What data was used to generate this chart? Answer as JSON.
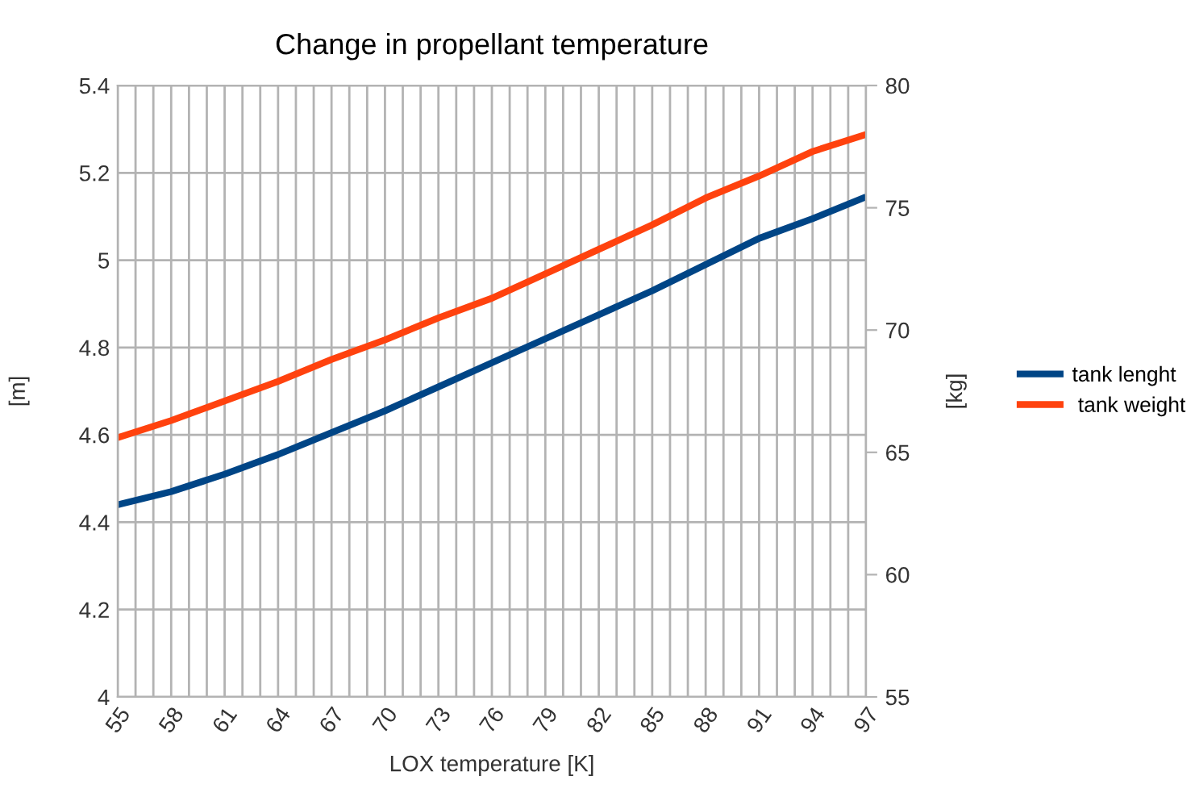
{
  "chart_data": {
    "type": "line",
    "title": "Change in propellant temperature",
    "xlabel": "LOX temperature [K]",
    "ylabel": "[m]",
    "y2label": "[kg]",
    "x": [
      55,
      58,
      61,
      64,
      67,
      70,
      73,
      76,
      79,
      82,
      85,
      88,
      91,
      94,
      97
    ],
    "series": [
      {
        "name": "tank lenght",
        "color": "#004586",
        "values": [
          4.44,
          4.47,
          4.51,
          4.555,
          4.605,
          4.655,
          4.71,
          4.765,
          4.82,
          4.875,
          4.93,
          4.99,
          5.05,
          5.095,
          5.145
        ]
      },
      {
        "name": " tank weight",
        "color": "#ff420e",
        "axis": "y2",
        "values": [
          65.6,
          66.3,
          67.1,
          67.9,
          68.8,
          69.6,
          70.5,
          71.3,
          72.3,
          73.3,
          74.3,
          75.4,
          76.3,
          77.3,
          78.0
        ]
      }
    ],
    "xlim": [
      55,
      97
    ],
    "xticks": [
      55,
      {
        "value": 56,
        "label": null
      },
      {
        "value": 57,
        "label": null
      },
      58,
      {
        "value": 59,
        "label": null
      },
      {
        "value": 60,
        "label": null
      },
      61,
      {
        "value": 62,
        "label": null
      },
      {
        "value": 63,
        "label": null
      },
      64,
      {
        "value": 65,
        "label": null
      },
      {
        "value": 66,
        "label": null
      },
      67,
      {
        "value": 68,
        "label": null
      },
      {
        "value": 69,
        "label": null
      },
      70,
      {
        "value": 71,
        "label": null
      },
      {
        "value": 72,
        "label": null
      },
      73,
      {
        "value": 74,
        "label": null
      },
      {
        "value": 75,
        "label": null
      },
      76,
      {
        "value": 77,
        "label": null
      },
      {
        "value": 78,
        "label": null
      },
      79,
      {
        "value": 80,
        "label": null
      },
      {
        "value": 81,
        "label": null
      },
      82,
      {
        "value": 83,
        "label": null
      },
      {
        "value": 84,
        "label": null
      },
      85,
      {
        "value": 86,
        "label": null
      },
      {
        "value": 87,
        "label": null
      },
      88,
      {
        "value": 89,
        "label": null
      },
      {
        "value": 90,
        "label": null
      },
      91,
      {
        "value": 92,
        "label": null
      },
      {
        "value": 93,
        "label": null
      },
      94,
      {
        "value": 95,
        "label": null
      },
      {
        "value": 96,
        "label": null
      },
      97
    ],
    "ylim": [
      4,
      5.4
    ],
    "yticks": [
      {
        "value": 4,
        "label": "4"
      },
      4.2,
      4.4,
      4.6,
      4.8,
      {
        "value": 5,
        "label": "5"
      },
      5.2,
      5.4
    ],
    "y2lim": [
      55,
      80
    ],
    "y2ticks": [
      55,
      60,
      65,
      70,
      75,
      80
    ],
    "grid": true,
    "legend": "right",
    "marker": "none",
    "line_style": "solid"
  }
}
